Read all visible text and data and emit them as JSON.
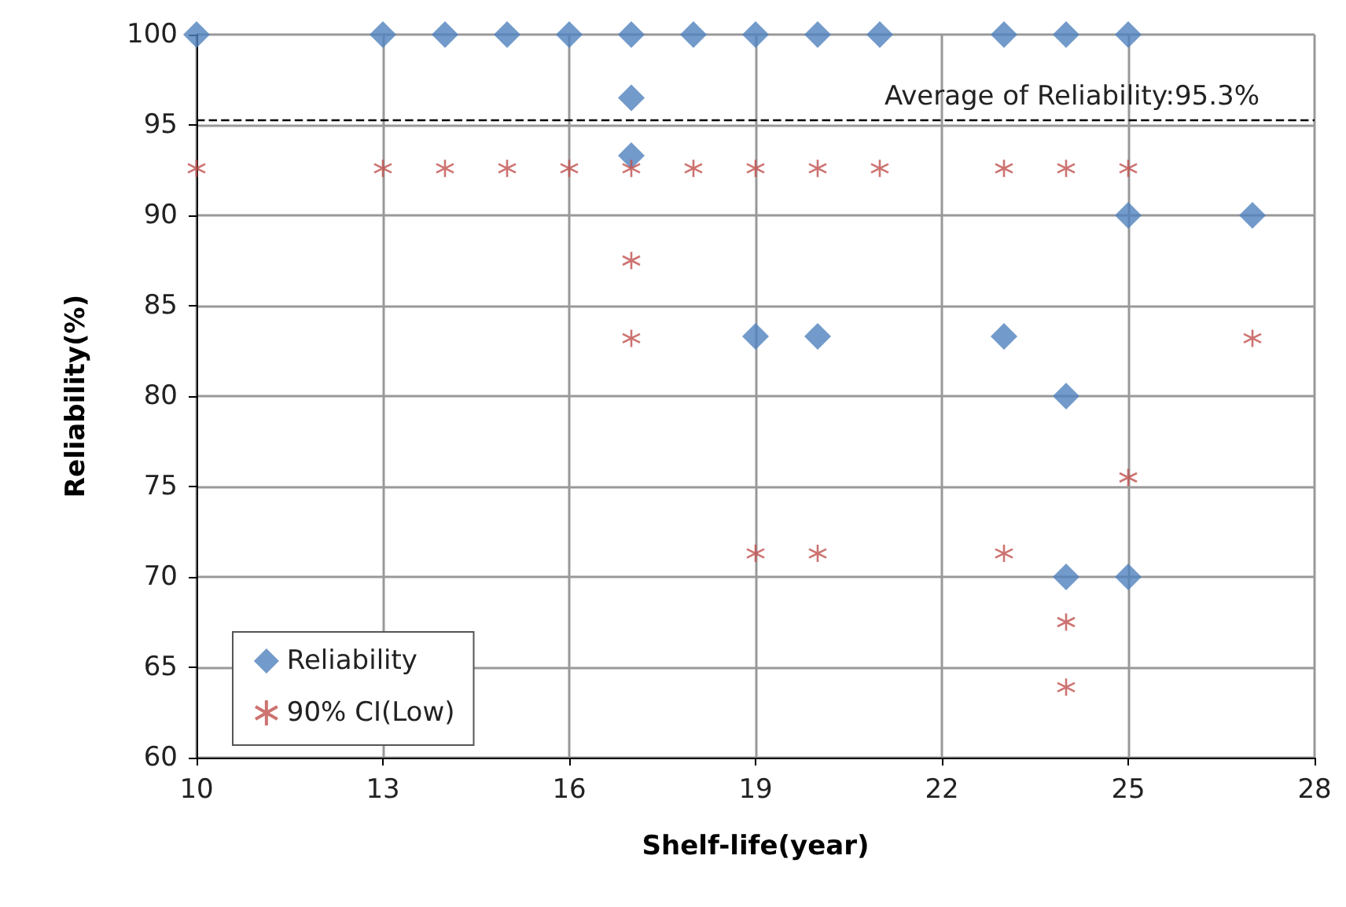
{
  "chart_data": {
    "type": "scatter",
    "xlabel": "Shelf-life(year)",
    "ylabel": "Reliability(%)",
    "xlim": [
      10,
      28
    ],
    "xticks": [
      10,
      13,
      16,
      19,
      22,
      25,
      28
    ],
    "ylim": [
      60,
      100
    ],
    "yticks": [
      60,
      65,
      70,
      75,
      80,
      85,
      90,
      95,
      100
    ],
    "grid": true,
    "legend": "bottom left",
    "series": [
      {
        "name": "Reliability",
        "color": "#4f81bd",
        "marker": "diamond",
        "x": [
          10,
          13,
          14,
          15,
          16,
          17,
          18,
          19,
          20,
          21,
          23,
          24,
          25,
          17,
          17,
          19,
          20,
          23,
          24,
          25,
          27,
          24,
          25
        ],
        "values": [
          100,
          100,
          100,
          100,
          100,
          100,
          100,
          100,
          100,
          100,
          100,
          100,
          100,
          96.5,
          93.3,
          83.3,
          83.3,
          83.3,
          80,
          90,
          90,
          70,
          70
        ]
      },
      {
        "name": "90% CI(Low)",
        "color": "#c0504d",
        "marker": "cross",
        "x": [
          10,
          13,
          14,
          15,
          16,
          17,
          18,
          19,
          20,
          21,
          23,
          24,
          25,
          17,
          17,
          19,
          20,
          23,
          24,
          24,
          25,
          27
        ],
        "values": [
          92.6,
          92.6,
          92.6,
          92.6,
          92.6,
          92.6,
          92.6,
          92.6,
          92.6,
          92.6,
          92.6,
          92.6,
          92.6,
          87.5,
          83.2,
          71.3,
          71.3,
          71.3,
          67.5,
          63.9,
          75.5,
          83.2
        ]
      }
    ],
    "ref_lines": [
      {
        "axis": "y",
        "value": 95.3,
        "label": "Average of Reliability:95.3%",
        "color": "#000000",
        "line_style": "dashed"
      }
    ]
  }
}
